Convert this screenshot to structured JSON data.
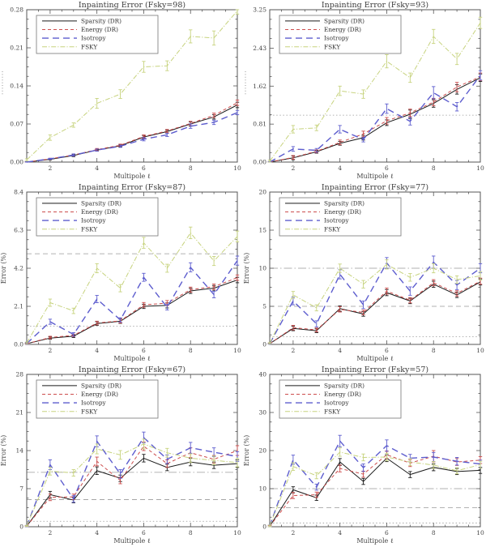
{
  "page": {
    "background": "#ffffff",
    "columns": 2,
    "rows": 3
  },
  "legend_labels": [
    "Sparsity (DR)",
    "Energy (DR)",
    "Isotropy",
    "FSKY"
  ],
  "colors": {
    "sparsity": "#1a1a1a",
    "energy": "#cc4d4d",
    "isotropy": "#5d5dce",
    "fsky": "#c7d37e",
    "reference": "#999999"
  },
  "chart_data": [
    {
      "type": "line",
      "title": "Inpainting Error (Fsky=98)",
      "xlabel": "Multipole ℓ",
      "ylabel": "",
      "ylabel_clipped": true,
      "x": [
        1,
        2,
        3,
        4,
        5,
        6,
        7,
        8,
        9,
        10
      ],
      "xticks": [
        2,
        4,
        6,
        8,
        10
      ],
      "ylim": [
        0,
        0.28
      ],
      "yticks": {
        "values": [
          0,
          0.07,
          0.14,
          0.21,
          0.28
        ],
        "labels": [
          "0.00",
          "0.07",
          "0.14",
          "0.21",
          "0.28"
        ]
      },
      "ref_lines": [],
      "legend_position": "top-left",
      "series": [
        {
          "name": "Sparsity (DR)",
          "color": "#1a1a1a",
          "dash": "solid",
          "width": 1,
          "values": [
            0.0,
            0.005,
            0.012,
            0.022,
            0.03,
            0.046,
            0.056,
            0.07,
            0.083,
            0.105
          ],
          "errors": [
            0.001,
            0.001,
            0.002,
            0.002,
            0.002,
            0.003,
            0.003,
            0.004,
            0.004,
            0.005
          ]
        },
        {
          "name": "Energy (DR)",
          "color": "#cc4d4d",
          "dash": "dash",
          "width": 1,
          "values": [
            0.0,
            0.006,
            0.013,
            0.023,
            0.031,
            0.047,
            0.057,
            0.071,
            0.086,
            0.109
          ],
          "errors": [
            0.001,
            0.001,
            0.002,
            0.002,
            0.002,
            0.003,
            0.003,
            0.004,
            0.004,
            0.005
          ]
        },
        {
          "name": "Isotropy",
          "color": "#5d5dce",
          "dash": "longdash",
          "width": 1.4,
          "values": [
            0.0,
            0.006,
            0.013,
            0.022,
            0.029,
            0.042,
            0.05,
            0.066,
            0.073,
            0.091
          ],
          "errors": [
            0.001,
            0.001,
            0.002,
            0.002,
            0.002,
            0.003,
            0.003,
            0.004,
            0.004,
            0.004
          ]
        },
        {
          "name": "FSKY",
          "color": "#c7d37e",
          "dash": "dashdot",
          "width": 1,
          "values": [
            0.004,
            0.045,
            0.068,
            0.108,
            0.125,
            0.175,
            0.177,
            0.231,
            0.228,
            0.278
          ],
          "errors": [
            0.002,
            0.005,
            0.004,
            0.009,
            0.008,
            0.01,
            0.009,
            0.012,
            0.013,
            0.006
          ]
        }
      ]
    },
    {
      "type": "line",
      "title": "Inpainting Error (Fsky=93)",
      "xlabel": "Multipole ℓ",
      "ylabel": "",
      "ylabel_clipped": true,
      "x": [
        1,
        2,
        3,
        4,
        5,
        6,
        7,
        8,
        9,
        10
      ],
      "xticks": [
        2,
        4,
        6,
        8,
        10
      ],
      "ylim": [
        0,
        3.25
      ],
      "yticks": {
        "values": [
          0,
          0.81,
          1.62,
          2.43,
          3.25
        ],
        "labels": [
          "0.00",
          "0.81",
          "1.62",
          "2.43",
          "3.25"
        ]
      },
      "ref_lines": [
        {
          "value": 1.0,
          "style": "dot"
        }
      ],
      "legend_position": "top-left",
      "series": [
        {
          "name": "Sparsity (DR)",
          "color": "#1a1a1a",
          "dash": "solid",
          "width": 1,
          "values": [
            0.0,
            0.09,
            0.22,
            0.4,
            0.52,
            0.84,
            1.02,
            1.25,
            1.55,
            1.8
          ],
          "errors": [
            0.01,
            0.04,
            0.03,
            0.04,
            0.05,
            0.06,
            0.09,
            0.08,
            0.1,
            0.08
          ]
        },
        {
          "name": "Energy (DR)",
          "color": "#cc4d4d",
          "dash": "dash",
          "width": 1,
          "values": [
            0.0,
            0.1,
            0.23,
            0.42,
            0.6,
            0.88,
            1.05,
            1.28,
            1.6,
            1.82
          ],
          "errors": [
            0.01,
            0.04,
            0.03,
            0.05,
            0.06,
            0.07,
            0.08,
            0.08,
            0.1,
            0.08
          ]
        },
        {
          "name": "Isotropy",
          "color": "#5d5dce",
          "dash": "longdash",
          "width": 1.4,
          "values": [
            0.0,
            0.28,
            0.25,
            0.7,
            0.48,
            1.14,
            0.87,
            1.48,
            1.18,
            1.85
          ],
          "errors": [
            0.01,
            0.05,
            0.04,
            0.08,
            0.05,
            0.1,
            0.08,
            0.13,
            0.09,
            0.1
          ]
        },
        {
          "name": "FSKY",
          "color": "#c7d37e",
          "dash": "dashdot",
          "width": 1,
          "values": [
            0.02,
            0.7,
            0.73,
            1.52,
            1.45,
            2.15,
            1.8,
            2.68,
            2.2,
            2.97
          ],
          "errors": [
            0.02,
            0.08,
            0.06,
            0.1,
            0.09,
            0.14,
            0.1,
            0.15,
            0.12,
            0.12
          ]
        }
      ]
    },
    {
      "type": "line",
      "title": "Inpainting Error (Fsky=87)",
      "xlabel": "Multipole ℓ",
      "ylabel": "Error (%)",
      "ylabel_clipped": false,
      "x": [
        1,
        2,
        3,
        4,
        5,
        6,
        7,
        8,
        9,
        10
      ],
      "xticks": [
        2,
        4,
        6,
        8,
        10
      ],
      "ylim": [
        0,
        8.4
      ],
      "yticks": {
        "values": [
          0,
          2.1,
          4.2,
          6.3,
          8.4
        ],
        "labels": [
          "0.0",
          "2.1",
          "4.2",
          "6.3",
          "8.4"
        ]
      },
      "ref_lines": [
        {
          "value": 5.0,
          "style": "refdash"
        },
        {
          "value": 1.0,
          "style": "dot"
        }
      ],
      "legend_position": "top-left",
      "series": [
        {
          "name": "Sparsity (DR)",
          "color": "#1a1a1a",
          "dash": "solid",
          "width": 1,
          "values": [
            0.04,
            0.35,
            0.45,
            1.15,
            1.28,
            2.1,
            2.15,
            2.95,
            3.1,
            3.55
          ],
          "errors": [
            0.03,
            0.07,
            0.07,
            0.1,
            0.12,
            0.12,
            0.14,
            0.14,
            0.15,
            0.15
          ]
        },
        {
          "name": "Energy (DR)",
          "color": "#cc4d4d",
          "dash": "dash",
          "width": 1,
          "values": [
            0.04,
            0.38,
            0.5,
            1.18,
            1.3,
            2.18,
            2.28,
            3.02,
            3.18,
            3.68
          ],
          "errors": [
            0.03,
            0.07,
            0.07,
            0.1,
            0.12,
            0.13,
            0.14,
            0.14,
            0.15,
            0.15
          ]
        },
        {
          "name": "Isotropy",
          "color": "#5d5dce",
          "dash": "longdash",
          "width": 1.4,
          "values": [
            0.05,
            1.25,
            0.55,
            2.5,
            1.35,
            3.7,
            2.05,
            4.25,
            2.75,
            4.62
          ],
          "errors": [
            0.04,
            0.14,
            0.1,
            0.2,
            0.12,
            0.22,
            0.15,
            0.25,
            0.18,
            0.25
          ]
        },
        {
          "name": "FSKY",
          "color": "#c7d37e",
          "dash": "dashdot",
          "width": 1,
          "values": [
            0.08,
            2.3,
            1.85,
            4.2,
            3.1,
            5.6,
            4.2,
            6.15,
            4.6,
            5.95
          ],
          "errors": [
            0.05,
            0.2,
            0.15,
            0.25,
            0.2,
            0.3,
            0.22,
            0.32,
            0.25,
            0.3
          ]
        }
      ]
    },
    {
      "type": "line",
      "title": "Inpainting Error (Fsky=77)",
      "xlabel": "Multipole ℓ",
      "ylabel": "Error (%)",
      "ylabel_clipped": false,
      "x": [
        1,
        2,
        3,
        4,
        5,
        6,
        7,
        8,
        9,
        10
      ],
      "xticks": [
        2,
        4,
        6,
        8,
        10
      ],
      "ylim": [
        0,
        20
      ],
      "yticks": {
        "values": [
          0,
          5,
          10,
          15,
          20
        ],
        "labels": [
          "0",
          "5",
          "10",
          "15",
          "20"
        ]
      },
      "ref_lines": [
        {
          "value": 10,
          "style": "refdashdot"
        },
        {
          "value": 5,
          "style": "refdash"
        },
        {
          "value": 1,
          "style": "dot"
        }
      ],
      "legend_position": "top-left",
      "series": [
        {
          "name": "Sparsity (DR)",
          "color": "#1a1a1a",
          "dash": "solid",
          "width": 1,
          "values": [
            0.1,
            2.1,
            1.8,
            4.7,
            4.0,
            6.8,
            5.7,
            7.9,
            6.5,
            8.2
          ],
          "errors": [
            0.05,
            0.3,
            0.25,
            0.35,
            0.3,
            0.4,
            0.35,
            0.4,
            0.35,
            0.4
          ]
        },
        {
          "name": "Energy (DR)",
          "color": "#cc4d4d",
          "dash": "dash",
          "width": 1,
          "values": [
            0.1,
            2.2,
            1.9,
            4.6,
            4.2,
            7.0,
            5.8,
            8.1,
            6.7,
            8.3
          ],
          "errors": [
            0.05,
            0.3,
            0.25,
            0.35,
            0.3,
            0.4,
            0.35,
            0.4,
            0.35,
            0.4
          ]
        },
        {
          "name": "Isotropy",
          "color": "#5d5dce",
          "dash": "longdash",
          "width": 1.4,
          "values": [
            0.1,
            5.7,
            2.7,
            9.2,
            5.2,
            10.7,
            7.0,
            10.8,
            7.8,
            10.0
          ],
          "errors": [
            0.08,
            0.5,
            0.4,
            0.6,
            0.5,
            0.7,
            0.55,
            0.8,
            0.6,
            0.6
          ]
        },
        {
          "name": "FSKY",
          "color": "#c7d37e",
          "dash": "dashdot",
          "width": 1,
          "values": [
            0.15,
            6.5,
            4.8,
            10.0,
            7.9,
            10.5,
            8.8,
            10.0,
            8.5,
            9.0
          ],
          "errors": [
            0.08,
            0.45,
            0.4,
            0.55,
            0.5,
            0.6,
            0.5,
            0.6,
            0.5,
            0.55
          ]
        }
      ]
    },
    {
      "type": "line",
      "title": "Inpainting Error (Fsky=67)",
      "xlabel": "Multipole ℓ",
      "ylabel": "Error (%)",
      "ylabel_clipped": false,
      "x": [
        1,
        2,
        3,
        4,
        5,
        6,
        7,
        8,
        9,
        10
      ],
      "xticks": [
        2,
        4,
        6,
        8,
        10
      ],
      "ylim": [
        0,
        28
      ],
      "yticks": {
        "values": [
          0,
          7,
          14,
          21,
          28
        ],
        "labels": [
          "0",
          "7",
          "14",
          "21",
          "28"
        ]
      },
      "ref_lines": [
        {
          "value": 10,
          "style": "refdashdot"
        },
        {
          "value": 5,
          "style": "refdash"
        },
        {
          "value": 1,
          "style": "dot"
        }
      ],
      "legend_position": "top-left",
      "series": [
        {
          "name": "Sparsity (DR)",
          "color": "#1a1a1a",
          "dash": "solid",
          "width": 1,
          "values": [
            0.1,
            5.9,
            4.9,
            10.3,
            8.9,
            12.6,
            10.9,
            11.9,
            11.3,
            11.6
          ],
          "errors": [
            0.1,
            0.6,
            0.5,
            0.7,
            0.6,
            0.7,
            0.6,
            0.7,
            0.6,
            0.7
          ]
        },
        {
          "name": "Energy (DR)",
          "color": "#cc4d4d",
          "dash": "dash",
          "width": 1,
          "values": [
            0.1,
            5.4,
            5.5,
            12.0,
            8.5,
            14.8,
            11.6,
            13.6,
            12.4,
            14.0
          ],
          "errors": [
            0.1,
            0.6,
            0.5,
            0.8,
            0.6,
            0.8,
            0.7,
            0.9,
            0.7,
            0.9
          ]
        },
        {
          "name": "Isotropy",
          "color": "#5d5dce",
          "dash": "longdash",
          "width": 1.4,
          "values": [
            0.1,
            11.4,
            5.1,
            15.7,
            9.7,
            16.4,
            12.4,
            14.5,
            13.7,
            12.9
          ],
          "errors": [
            0.15,
            0.9,
            0.6,
            1.0,
            0.8,
            1.0,
            0.8,
            1.0,
            0.8,
            0.9
          ]
        },
        {
          "name": "FSKY",
          "color": "#c7d37e",
          "dash": "dashdot",
          "width": 1,
          "values": [
            0.15,
            10.2,
            9.9,
            14.3,
            13.2,
            15.2,
            13.6,
            12.6,
            12.2,
            11.8
          ],
          "errors": [
            0.1,
            0.7,
            0.6,
            0.9,
            0.8,
            0.9,
            0.8,
            0.8,
            0.8,
            0.8
          ]
        }
      ]
    },
    {
      "type": "line",
      "title": "Inpainting Error (Fsky=57)",
      "xlabel": "Multipole ℓ",
      "ylabel": "Error (%)",
      "ylabel_clipped": false,
      "x": [
        1,
        2,
        3,
        4,
        5,
        6,
        7,
        8,
        9,
        10
      ],
      "xticks": [
        2,
        4,
        6,
        8,
        10
      ],
      "ylim": [
        0,
        40
      ],
      "yticks": {
        "values": [
          0,
          10,
          20,
          30,
          40
        ],
        "labels": [
          "0",
          "10",
          "20",
          "30",
          "40"
        ]
      },
      "ref_lines": [
        {
          "value": 10,
          "style": "refdashdot"
        },
        {
          "value": 5,
          "style": "refdash"
        },
        {
          "value": 1,
          "style": "dot"
        }
      ],
      "legend_position": "top-left",
      "series": [
        {
          "name": "Sparsity (DR)",
          "color": "#1a1a1a",
          "dash": "solid",
          "width": 1,
          "values": [
            0.1,
            9.7,
            7.6,
            17.0,
            11.9,
            18.0,
            13.7,
            15.6,
            14.5,
            14.8
          ],
          "errors": [
            0.2,
            0.8,
            0.7,
            0.9,
            0.8,
            0.9,
            0.8,
            0.9,
            0.8,
            0.8
          ]
        },
        {
          "name": "Energy (DR)",
          "color": "#cc4d4d",
          "dash": "dash",
          "width": 1,
          "values": [
            0.1,
            8.2,
            8.4,
            15.3,
            13.8,
            18.9,
            16.7,
            18.5,
            17.0,
            17.5
          ],
          "errors": [
            0.2,
            0.8,
            0.7,
            0.9,
            0.8,
            1.0,
            0.9,
            1.5,
            0.9,
            0.9
          ]
        },
        {
          "name": "Isotropy",
          "color": "#5d5dce",
          "dash": "longdash",
          "width": 1.4,
          "values": [
            0.15,
            17.6,
            10.4,
            22.5,
            15.5,
            21.3,
            18.0,
            18.3,
            17.2,
            16.5
          ],
          "errors": [
            0.3,
            1.2,
            0.8,
            1.5,
            1.0,
            1.5,
            1.0,
            1.2,
            1.0,
            1.0
          ]
        },
        {
          "name": "FSKY",
          "color": "#c7d37e",
          "dash": "dashdot",
          "width": 1,
          "values": [
            0.2,
            15.8,
            13.4,
            19.6,
            18.2,
            18.3,
            17.0,
            16.2,
            14.7,
            16.3
          ],
          "errors": [
            0.2,
            1.0,
            0.8,
            1.1,
            0.9,
            1.0,
            0.9,
            0.9,
            0.8,
            0.9
          ]
        }
      ]
    }
  ]
}
